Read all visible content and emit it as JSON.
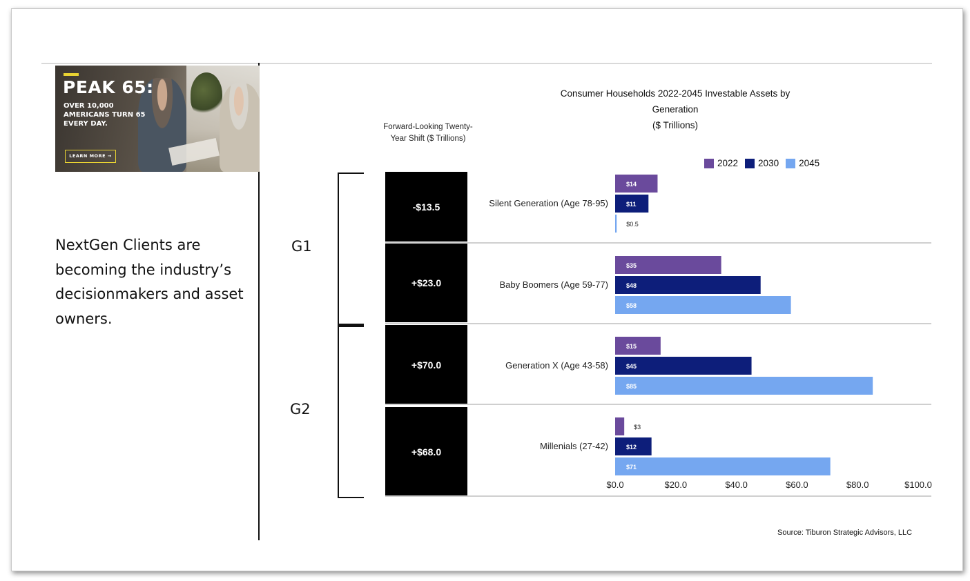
{
  "promo": {
    "headline": "PEAK 65:",
    "subline": "OVER 10,000 AMERICANS TURN 65 EVERY DAY.",
    "cta": "LEARN MORE →"
  },
  "body_text": "NextGen Clients are becoming the industry’s decisionmakers and asset owners.",
  "shift": {
    "header": "Forward-Looking Twenty-Year Shift ($ Trillions)",
    "values": [
      "-$13.5",
      "+$23.0",
      "+$70.0",
      "+$68.0"
    ]
  },
  "groups": [
    "G1",
    "G2"
  ],
  "source": "Source: Tiburon Strategic Advisors, LLC",
  "colors": {
    "2022": "#6a4a9c",
    "2030": "#0d1e7a",
    "2045": "#75a7f0"
  },
  "chart_data": {
    "type": "bar",
    "orientation": "horizontal",
    "title": "Consumer Households 2022-2045 Investable Assets by Generation ($ Trillions)",
    "title_lines": [
      "Consumer Households 2022-2045 Investable Assets by",
      "Generation",
      "($ Trillions)"
    ],
    "categories": [
      "Silent Generation (Age 78-95)",
      "Baby Boomers (Age 59-77)",
      "Generation X (Age 43-58)",
      "Millenials (27-42)"
    ],
    "series": [
      {
        "name": "2022",
        "values": [
          14,
          35,
          15,
          3
        ],
        "labels": [
          "$14",
          "$35",
          "$15",
          "$3"
        ]
      },
      {
        "name": "2030",
        "values": [
          11,
          48,
          45,
          12
        ],
        "labels": [
          "$11",
          "$48",
          "$45",
          "$12"
        ]
      },
      {
        "name": "2045",
        "values": [
          0.5,
          58,
          85,
          71
        ],
        "labels": [
          "$0.5",
          "$58",
          "$85",
          "$71"
        ]
      }
    ],
    "xlim": [
      0,
      100
    ],
    "x_ticks": [
      "$0.0",
      "$20.0",
      "$40.0",
      "$60.0",
      "$80.0",
      "$100.0"
    ],
    "legend": "top-right",
    "grid": false
  }
}
